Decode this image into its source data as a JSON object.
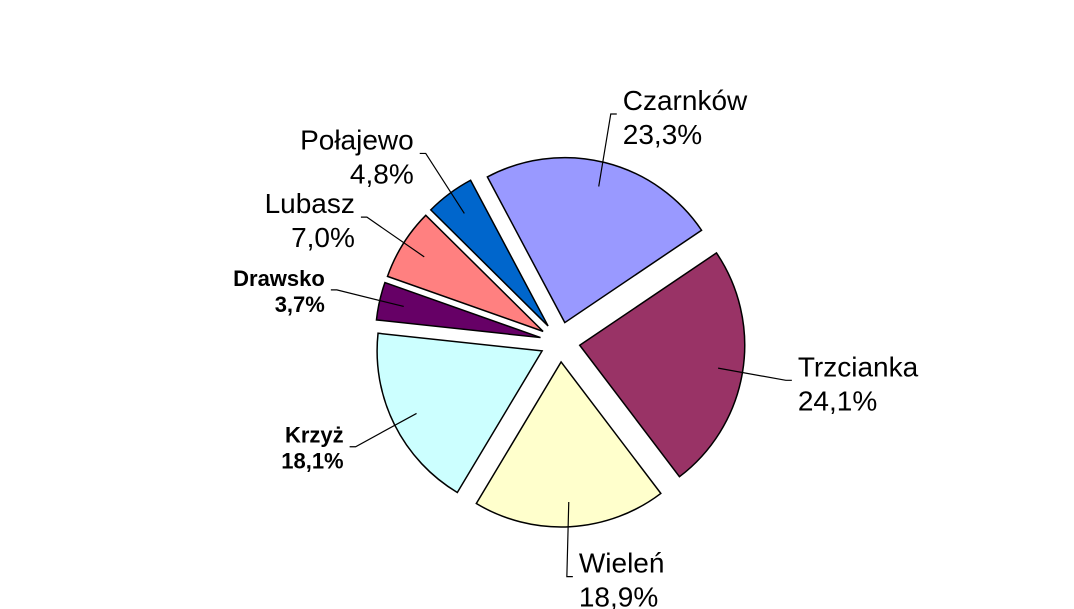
{
  "chart_data": {
    "type": "pie",
    "categories": [
      "Czarnków",
      "Trzcianka",
      "Wieleń",
      "Krzyż",
      "Drawsko",
      "Lubasz",
      "Połajewo"
    ],
    "values": [
      23.3,
      24.1,
      18.9,
      18.1,
      3.7,
      7.0,
      4.8
    ],
    "value_labels": [
      "23,3%",
      "24,1%",
      "18,9%",
      "18,1%",
      "3,7%",
      "7,0%",
      "4,8%"
    ],
    "colors": [
      "#9999ff",
      "#993366",
      "#ffffcc",
      "#ccffff",
      "#660066",
      "#ff8080",
      "#0066cc"
    ],
    "bold_labels": [
      false,
      false,
      false,
      true,
      true,
      false,
      false
    ]
  }
}
